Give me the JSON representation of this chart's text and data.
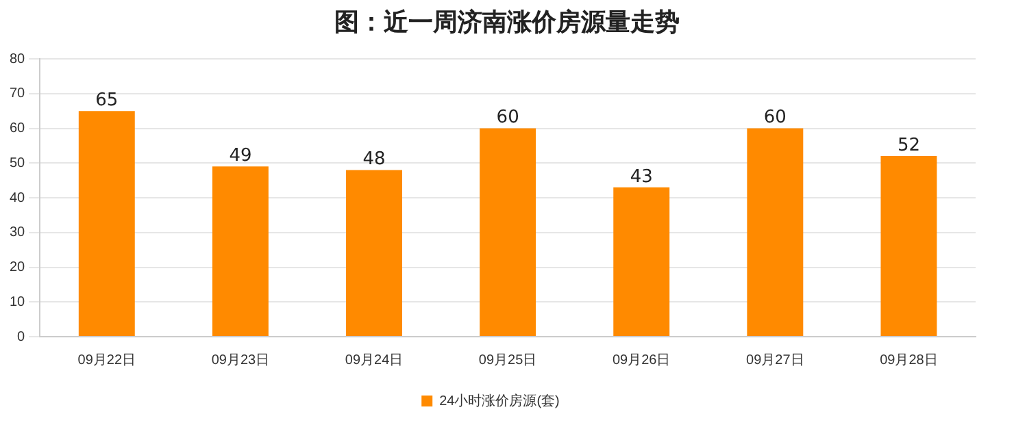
{
  "chart_data": {
    "type": "bar",
    "title": "图：近一周济南涨价房源量走势",
    "categories": [
      "09月22日",
      "09月23日",
      "09月24日",
      "09月25日",
      "09月26日",
      "09月27日",
      "09月28日"
    ],
    "series": [
      {
        "name": "24小时涨价房源(套)",
        "color": "#ff8a00",
        "values": [
          65,
          49,
          48,
          60,
          43,
          60,
          52
        ]
      }
    ],
    "ylim": [
      0,
      80
    ],
    "yticks": [
      0,
      10,
      20,
      30,
      40,
      50,
      60,
      70,
      80
    ],
    "grid": "y",
    "legend": "bottom",
    "data_labels": true
  }
}
